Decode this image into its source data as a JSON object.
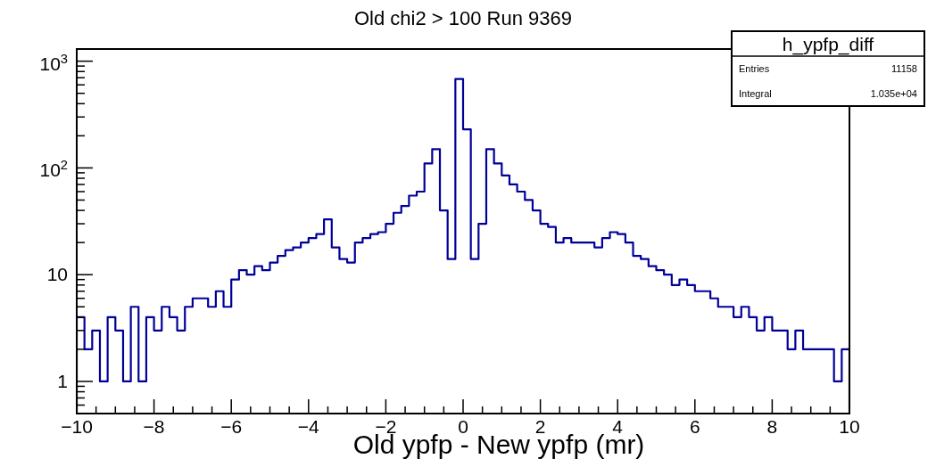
{
  "chart_data": {
    "type": "histogram",
    "title": "Old chi2 > 100 Run 9369",
    "xlabel": "Old ypfp - New ypfp (mr)",
    "annotations": [
      "h_ypfp_diff",
      "Entries",
      "11158",
      "Integral",
      "1.035e+04"
    ],
    "color": "#000099",
    "log": true,
    "bins": [
      -10,
      -9.8,
      -9.6,
      -9.4,
      -9.2,
      -9,
      -8.8,
      -8.6,
      -8.4,
      -8.2,
      -8,
      -7.8,
      -7.6,
      -7.4,
      -7.2,
      -7,
      -6.8,
      -6.6,
      -6.4,
      -6.2,
      -6,
      -5.8,
      -5.6,
      -5.4,
      -5.2,
      -5,
      -4.8,
      -4.6,
      -4.4,
      -4.2,
      -4,
      -3.8,
      -3.6,
      -3.4,
      -3.2,
      -3,
      -2.8,
      -2.6,
      -2.4,
      -2.2,
      -2,
      -1.8,
      -1.6,
      -1.4,
      -1.2,
      -1,
      -0.8,
      -0.6,
      -0.4,
      -0.2,
      0,
      0.2,
      0.4,
      0.6,
      0.8,
      1,
      1.2,
      1.4,
      1.6,
      1.8,
      2,
      2.2,
      2.4,
      2.6,
      2.8,
      3,
      3.2,
      3.4,
      3.6,
      3.8,
      4,
      4.2,
      4.4,
      4.6,
      4.8,
      5,
      5.2,
      5.4,
      5.6,
      5.8,
      6,
      6.2,
      6.4,
      6.6,
      6.8,
      7,
      7.2,
      7.4,
      7.6,
      7.8,
      8,
      8.2,
      8.4,
      8.6,
      8.8,
      9,
      9.2,
      9.4,
      9.6,
      9.8,
      10
    ],
    "values": [
      4,
      2,
      3,
      1,
      4,
      3,
      1,
      5,
      1,
      4,
      3,
      5,
      4,
      3,
      5,
      6,
      6,
      5,
      7,
      5,
      9,
      11,
      10,
      12,
      11,
      13,
      15,
      17,
      18,
      20,
      22,
      24,
      33,
      18,
      14,
      13,
      20,
      22,
      24,
      25,
      30,
      38,
      44,
      55,
      60,
      110,
      150,
      40,
      14,
      680,
      230,
      14,
      30,
      150,
      110,
      85,
      70,
      60,
      50,
      40,
      30,
      28,
      20,
      22,
      20,
      20,
      20,
      18,
      22,
      25,
      24,
      20,
      15,
      14,
      12,
      11,
      10,
      8,
      9,
      8,
      7,
      7,
      6,
      5,
      5,
      4,
      5,
      4,
      3,
      4,
      3,
      3,
      2,
      3,
      2,
      2,
      2,
      2,
      1,
      2
    ],
    "xlim": [
      -10,
      10
    ],
    "xticks": [
      -10,
      {
        "value": -9.5,
        "label": null
      },
      {
        "value": -9,
        "label": null
      },
      {
        "value": -8.5,
        "label": null
      },
      -8,
      {
        "value": -7.5,
        "label": null
      },
      {
        "value": -7,
        "label": null
      },
      {
        "value": -6.5,
        "label": null
      },
      -6,
      {
        "value": -5.5,
        "label": null
      },
      {
        "value": -5,
        "label": null
      },
      {
        "value": -4.5,
        "label": null
      },
      -4,
      {
        "value": -3.5,
        "label": null
      },
      {
        "value": -3,
        "label": null
      },
      {
        "value": -2.5,
        "label": null
      },
      -2,
      {
        "value": -1.5,
        "label": null
      },
      {
        "value": -1,
        "label": null
      },
      {
        "value": -0.5,
        "label": null
      },
      0,
      {
        "value": 0.5,
        "label": null
      },
      {
        "value": 1,
        "label": null
      },
      {
        "value": 1.5,
        "label": null
      },
      2,
      {
        "value": 2.5,
        "label": null
      },
      {
        "value": 3,
        "label": null
      },
      {
        "value": 3.5,
        "label": null
      },
      4,
      {
        "value": 4.5,
        "label": null
      },
      {
        "value": 5,
        "label": null
      },
      {
        "value": 5.5,
        "label": null
      },
      6,
      {
        "value": 6.5,
        "label": null
      },
      {
        "value": 7,
        "label": null
      },
      {
        "value": 7.5,
        "label": null
      },
      8,
      {
        "value": 8.5,
        "label": null
      },
      {
        "value": 9,
        "label": null
      },
      {
        "value": 9.5,
        "label": null
      },
      10
    ],
    "ylim": [
      0.5,
      1300
    ],
    "yticks": [
      {
        "value": 0.6,
        "label": null
      },
      {
        "value": 0.7,
        "label": null
      },
      {
        "value": 0.8,
        "label": null
      },
      {
        "value": 0.9,
        "label": null
      },
      1,
      {
        "value": 2,
        "label": null
      },
      {
        "value": 3,
        "label": null
      },
      {
        "value": 4,
        "label": null
      },
      {
        "value": 5,
        "label": null
      },
      {
        "value": 6,
        "label": null
      },
      {
        "value": 7,
        "label": null
      },
      {
        "value": 8,
        "label": null
      },
      {
        "value": 9,
        "label": null
      },
      10,
      {
        "value": 20,
        "label": null
      },
      {
        "value": 30,
        "label": null
      },
      {
        "value": 40,
        "label": null
      },
      {
        "value": 50,
        "label": null
      },
      {
        "value": 60,
        "label": null
      },
      {
        "value": 70,
        "label": null
      },
      {
        "value": 80,
        "label": null
      },
      {
        "value": 90,
        "label": null
      },
      {
        "value": 100,
        "label": "10$^{2}$"
      },
      {
        "value": 200,
        "label": null
      },
      {
        "value": 300,
        "label": null
      },
      {
        "value": 400,
        "label": null
      },
      {
        "value": 500,
        "label": null
      },
      {
        "value": 600,
        "label": null
      },
      {
        "value": 700,
        "label": null
      },
      {
        "value": 800,
        "label": null
      },
      {
        "value": 900,
        "label": null
      },
      {
        "value": 1000,
        "label": "10$^{3}$"
      }
    ]
  }
}
